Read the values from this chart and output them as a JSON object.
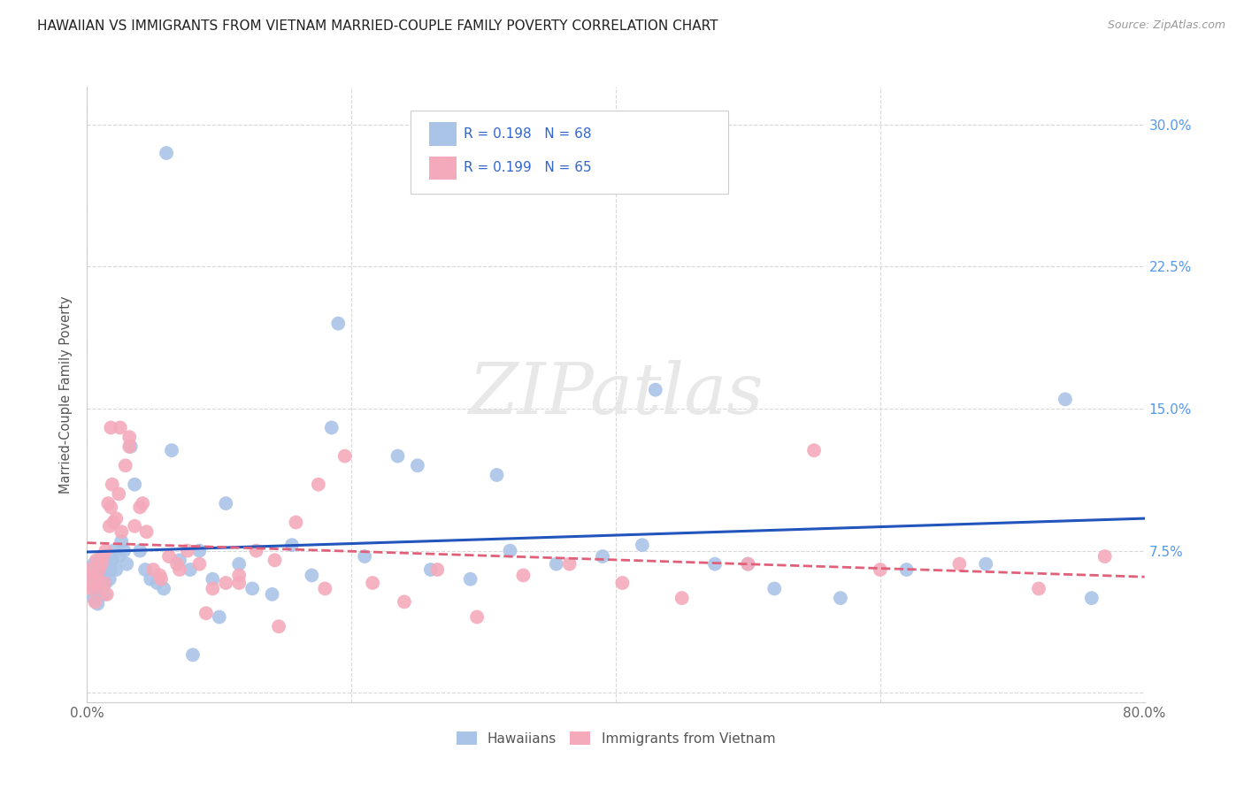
{
  "title": "HAWAIIAN VS IMMIGRANTS FROM VIETNAM MARRIED-COUPLE FAMILY POVERTY CORRELATION CHART",
  "source": "Source: ZipAtlas.com",
  "ylabel": "Married-Couple Family Poverty",
  "xlim": [
    0.0,
    0.8
  ],
  "ylim": [
    -0.005,
    0.32
  ],
  "yticks": [
    0.0,
    0.075,
    0.15,
    0.225,
    0.3
  ],
  "yticklabels": [
    "",
    "7.5%",
    "15.0%",
    "22.5%",
    "30.0%"
  ],
  "xticks": [
    0.0,
    0.2,
    0.4,
    0.6,
    0.8
  ],
  "xticklabels": [
    "0.0%",
    "",
    "",
    "",
    "80.0%"
  ],
  "background_color": "#ffffff",
  "grid_color": "#d8d8d8",
  "hawaii_color": "#aac4e8",
  "hawaii_line_color": "#2255bb",
  "vietnam_color": "#f4aabb",
  "vietnam_line_color": "#e0607a",
  "hawaii_x": [
    0.002,
    0.003,
    0.004,
    0.005,
    0.005,
    0.006,
    0.007,
    0.008,
    0.008,
    0.009,
    0.01,
    0.011,
    0.012,
    0.013,
    0.014,
    0.015,
    0.016,
    0.017,
    0.018,
    0.019,
    0.02,
    0.022,
    0.024,
    0.026,
    0.028,
    0.03,
    0.033,
    0.036,
    0.04,
    0.044,
    0.048,
    0.053,
    0.058,
    0.064,
    0.07,
    0.078,
    0.085,
    0.095,
    0.105,
    0.115,
    0.125,
    0.14,
    0.155,
    0.17,
    0.19,
    0.21,
    0.235,
    0.26,
    0.29,
    0.32,
    0.355,
    0.39,
    0.43,
    0.475,
    0.52,
    0.57,
    0.62,
    0.68,
    0.74,
    0.76,
    0.185,
    0.25,
    0.31,
    0.42,
    0.5,
    0.06,
    0.08,
    0.1
  ],
  "hawaii_y": [
    0.062,
    0.058,
    0.06,
    0.05,
    0.068,
    0.055,
    0.06,
    0.047,
    0.065,
    0.058,
    0.07,
    0.062,
    0.065,
    0.052,
    0.058,
    0.068,
    0.072,
    0.06,
    0.065,
    0.07,
    0.075,
    0.065,
    0.072,
    0.08,
    0.075,
    0.068,
    0.13,
    0.11,
    0.075,
    0.065,
    0.06,
    0.058,
    0.055,
    0.128,
    0.07,
    0.065,
    0.075,
    0.06,
    0.1,
    0.068,
    0.055,
    0.052,
    0.078,
    0.062,
    0.195,
    0.072,
    0.125,
    0.065,
    0.06,
    0.075,
    0.068,
    0.072,
    0.16,
    0.068,
    0.055,
    0.05,
    0.065,
    0.068,
    0.155,
    0.05,
    0.14,
    0.12,
    0.115,
    0.078,
    0.068,
    0.285,
    0.02,
    0.04
  ],
  "vietnam_x": [
    0.002,
    0.003,
    0.004,
    0.005,
    0.006,
    0.007,
    0.008,
    0.009,
    0.01,
    0.011,
    0.012,
    0.013,
    0.014,
    0.015,
    0.016,
    0.017,
    0.018,
    0.019,
    0.02,
    0.022,
    0.024,
    0.026,
    0.029,
    0.032,
    0.036,
    0.04,
    0.045,
    0.05,
    0.056,
    0.062,
    0.068,
    0.076,
    0.085,
    0.095,
    0.105,
    0.115,
    0.128,
    0.142,
    0.158,
    0.175,
    0.195,
    0.216,
    0.24,
    0.265,
    0.295,
    0.33,
    0.365,
    0.405,
    0.45,
    0.5,
    0.55,
    0.6,
    0.66,
    0.72,
    0.77,
    0.018,
    0.025,
    0.032,
    0.042,
    0.055,
    0.07,
    0.09,
    0.115,
    0.145,
    0.18
  ],
  "vietnam_y": [
    0.065,
    0.055,
    0.058,
    0.062,
    0.048,
    0.07,
    0.06,
    0.065,
    0.055,
    0.068,
    0.072,
    0.058,
    0.075,
    0.052,
    0.1,
    0.088,
    0.098,
    0.11,
    0.09,
    0.092,
    0.105,
    0.085,
    0.12,
    0.13,
    0.088,
    0.098,
    0.085,
    0.065,
    0.06,
    0.072,
    0.068,
    0.075,
    0.068,
    0.055,
    0.058,
    0.062,
    0.075,
    0.07,
    0.09,
    0.11,
    0.125,
    0.058,
    0.048,
    0.065,
    0.04,
    0.062,
    0.068,
    0.058,
    0.05,
    0.068,
    0.128,
    0.065,
    0.068,
    0.055,
    0.072,
    0.14,
    0.14,
    0.135,
    0.1,
    0.062,
    0.065,
    0.042,
    0.058,
    0.035,
    0.055
  ]
}
